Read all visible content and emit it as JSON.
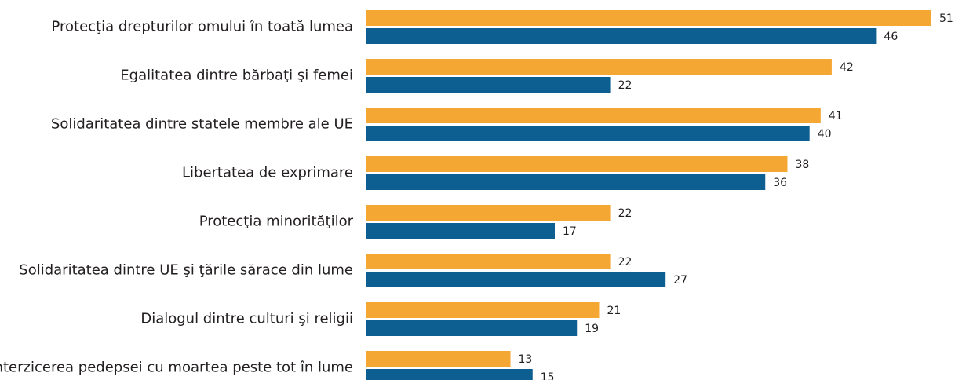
{
  "chart_data": {
    "type": "bar",
    "orientation": "horizontal",
    "categories": [
      "Protecţia drepturilor omului în toată lumea",
      "Egalitatea dintre bărbaţi şi femei",
      "Solidaritatea dintre statele membre ale UE",
      "Libertatea de exprimare",
      "Protecţia minorităţilor",
      "Solidaritatea dintre UE şi ţările sărace din lume",
      "Dialogul dintre culturi şi religii",
      "Interzicerea pedepsei cu moartea peste tot în lume"
    ],
    "series": [
      {
        "color": "#f5a733",
        "values": [
          51,
          42,
          41,
          38,
          22,
          22,
          21,
          13
        ]
      },
      {
        "color": "#0d5f91",
        "values": [
          46,
          22,
          40,
          36,
          17,
          27,
          19,
          15
        ]
      }
    ]
  }
}
